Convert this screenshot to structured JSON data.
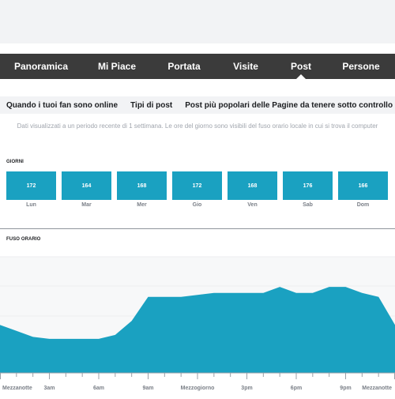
{
  "nav": {
    "tabs": [
      {
        "label": "Panoramica",
        "active": false
      },
      {
        "label": "Mi Piace",
        "active": false
      },
      {
        "label": "Portata",
        "active": false
      },
      {
        "label": "Visite",
        "active": false
      },
      {
        "label": "Post",
        "active": true
      },
      {
        "label": "Persone",
        "active": false
      }
    ]
  },
  "subnav": {
    "tabs": [
      {
        "label": "Quando i tuoi fan sono online"
      },
      {
        "label": "Tipi di post"
      },
      {
        "label": "Post più popolari delle Pagine da tenere sotto controllo"
      }
    ]
  },
  "info_note": "Dati visualizzati a un periodo recente di 1 settimana. Le ore del giorno sono visibili del fuso orario locale in cui si trova il computer",
  "days_section": {
    "title": "GIORNI",
    "days": [
      {
        "label": "Lun",
        "value": "172"
      },
      {
        "label": "Mar",
        "value": "164"
      },
      {
        "label": "Mer",
        "value": "168"
      },
      {
        "label": "Gio",
        "value": "172"
      },
      {
        "label": "Ven",
        "value": "168"
      },
      {
        "label": "Sab",
        "value": "176"
      },
      {
        "label": "Dom",
        "value": "166"
      }
    ]
  },
  "timezone_section": {
    "title": "FUSO ORARIO"
  },
  "colors": {
    "accent": "#1aa1c1",
    "navbar": "#3b3b3b"
  },
  "chart_data": {
    "type": "area",
    "x": [
      0,
      1,
      2,
      3,
      4,
      5,
      6,
      7,
      8,
      9,
      10,
      11,
      12,
      13,
      14,
      15,
      16,
      17,
      18,
      19,
      20,
      21,
      22,
      23,
      24
    ],
    "values": [
      92,
      98,
      104,
      106,
      106,
      106,
      106,
      102,
      88,
      64,
      64,
      64,
      62,
      60,
      60,
      60,
      60,
      54,
      60,
      60,
      54,
      54,
      60,
      64,
      92
    ],
    "ylim": [
      20,
      140
    ],
    "tick_labels": [
      {
        "x": 0,
        "label": "Mezzanotte"
      },
      {
        "x": 3,
        "label": "3am"
      },
      {
        "x": 6,
        "label": "6am"
      },
      {
        "x": 9,
        "label": "9am"
      },
      {
        "x": 12,
        "label": "Mezzogiorno"
      },
      {
        "x": 15,
        "label": "3pm"
      },
      {
        "x": 18,
        "label": "6pm"
      },
      {
        "x": 21,
        "label": "9pm"
      },
      {
        "x": 24,
        "label": "Mezzanotte"
      }
    ],
    "grid": true
  }
}
